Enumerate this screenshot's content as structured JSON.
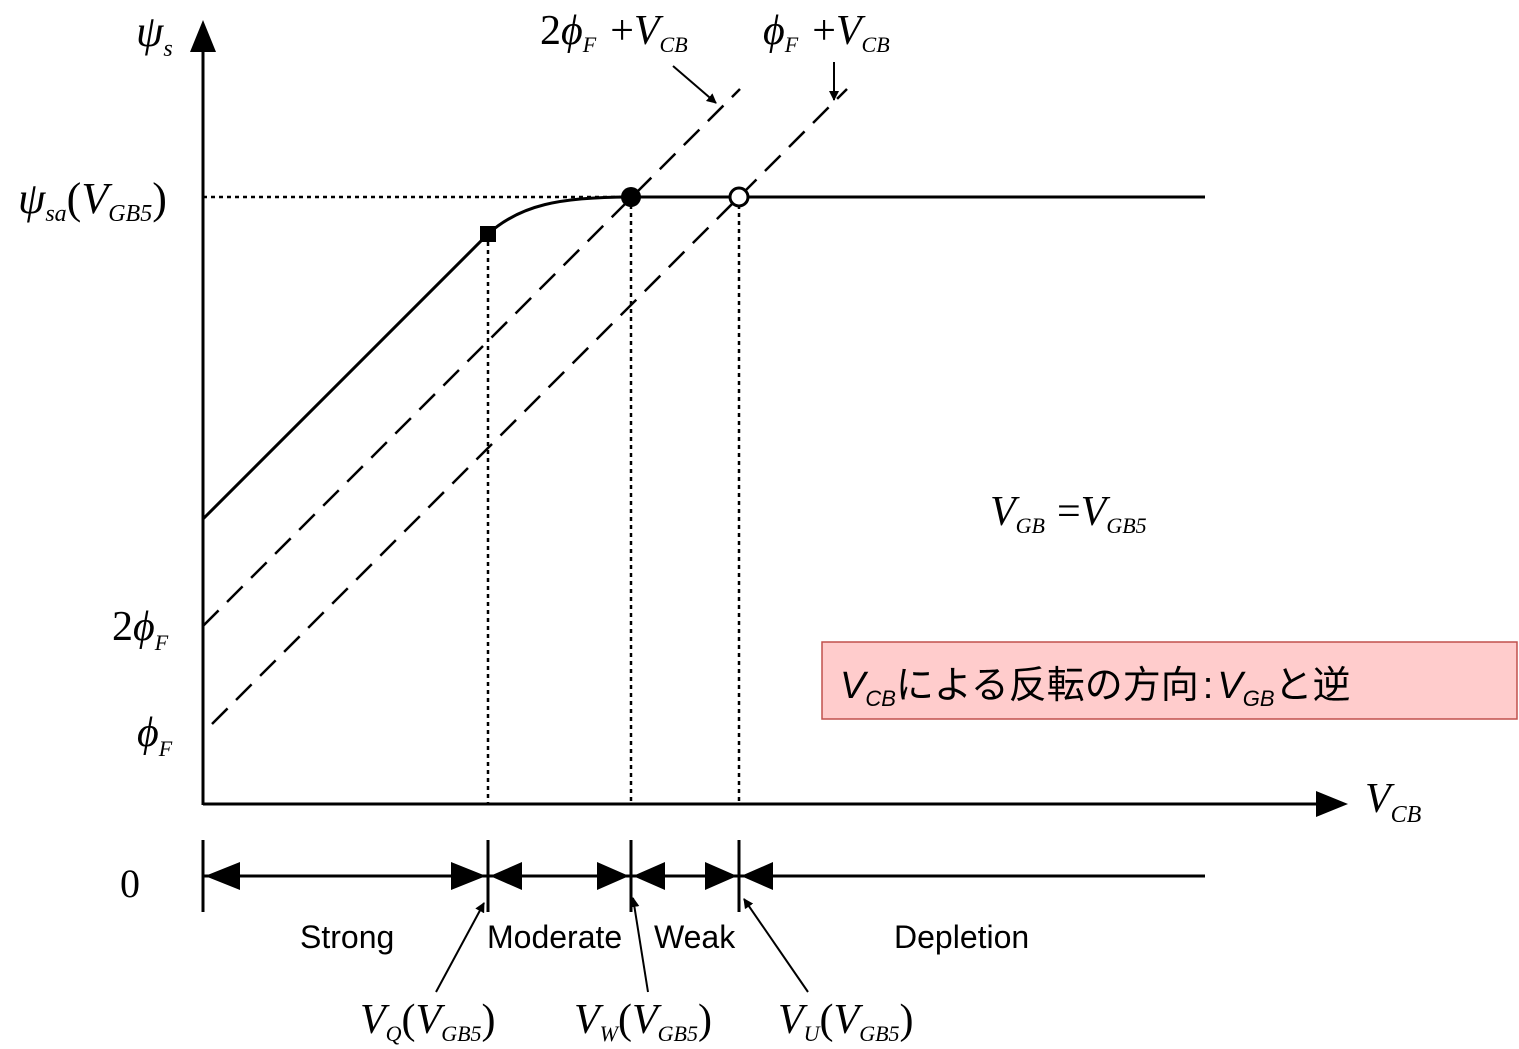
{
  "axes": {
    "y_symbol": "ψ",
    "y_sub": "s",
    "x_symbol": "V",
    "x_sub": "CB"
  },
  "ticks": {
    "psi_sa": {
      "main": "ψ",
      "sub": "sa",
      "arg_main": "V",
      "arg_sub": "GB5"
    },
    "two_phi": {
      "coef": "2",
      "main": "ϕ",
      "sub": "F"
    },
    "phi": {
      "main": "ϕ",
      "sub": "F"
    },
    "zero": "0"
  },
  "line_labels": {
    "two_phi_plus_vcb": {
      "coef": "2",
      "phi": "ϕ",
      "phi_sub": "F",
      "plus": "+",
      "v": "V",
      "v_sub": "CB"
    },
    "phi_plus_vcb": {
      "phi": "ϕ",
      "phi_sub": "F",
      "plus": "+",
      "v": "V",
      "v_sub": "CB"
    }
  },
  "condition": {
    "lhs": "V",
    "lhs_sub": "GB",
    "eq": "=",
    "rhs": "V",
    "rhs_sub": "GB5"
  },
  "note": {
    "v": "V",
    "v_sub": "CB",
    "text1": "による反転の方向",
    "colon": ":",
    "v2": "V",
    "v2_sub": "GB",
    "text2": "と逆",
    "bg_color": "#ffcccc",
    "border_color": "#c0504d"
  },
  "regions": [
    "Strong",
    "Moderate",
    "Weak",
    "Depletion"
  ],
  "points": {
    "vq": {
      "v": "V",
      "sub": "Q",
      "arg": "V",
      "arg_sub": "GB5"
    },
    "vw": {
      "v": "V",
      "sub": "W",
      "arg": "V",
      "arg_sub": "GB5"
    },
    "vu": {
      "v": "V",
      "sub": "U",
      "arg": "V",
      "arg_sub": "GB5"
    }
  }
}
